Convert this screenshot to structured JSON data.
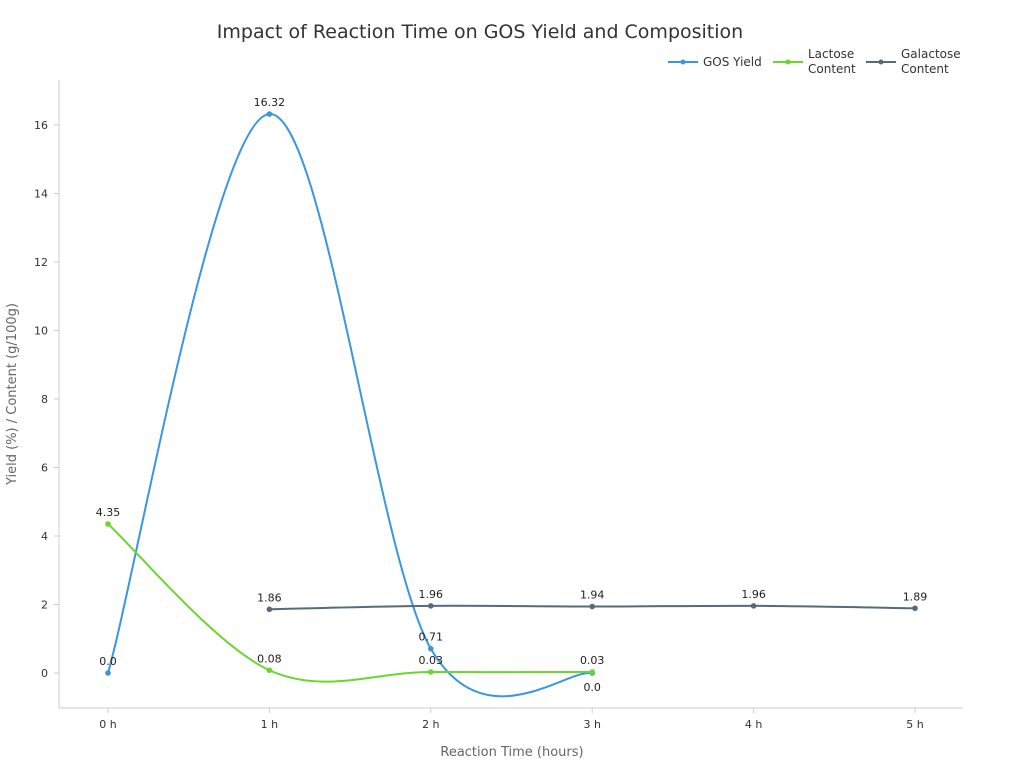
{
  "chart_data": {
    "type": "line",
    "title": "Impact of Reaction Time on GOS Yield and Composition",
    "xlabel": "Reaction Time (hours)",
    "ylabel": "Yield (%) / Content (g/100g)",
    "categories": [
      "0 h",
      "1 h",
      "2 h",
      "3 h",
      "4 h",
      "5 h"
    ],
    "ylim": [
      -1.0,
      17.3
    ],
    "yticks": [
      0,
      2,
      4,
      6,
      8,
      10,
      12,
      14,
      16
    ],
    "grid": false,
    "legend_position": "top-right",
    "series": [
      {
        "name": "GOS Yield",
        "color": "#3a96e0",
        "x": [
          0,
          1,
          2,
          3
        ],
        "values": [
          0.0,
          16.32,
          0.71,
          0.0
        ],
        "labels": [
          "0.0",
          "16.32",
          "0.71",
          "0.0"
        ]
      },
      {
        "name": "Lactose Content",
        "color": "#6bd62f",
        "x": [
          0,
          1,
          2,
          3
        ],
        "values": [
          4.35,
          0.08,
          0.03,
          0.03
        ],
        "labels": [
          "4.35",
          "0.08",
          "0.03",
          "0.03"
        ]
      },
      {
        "name": "Galactose Content",
        "color": "#566b7a",
        "x": [
          1,
          2,
          3,
          4,
          5
        ],
        "values": [
          1.86,
          1.96,
          1.94,
          1.96,
          1.89
        ],
        "labels": [
          "1.86",
          "1.96",
          "1.94",
          "1.96",
          "1.89"
        ]
      }
    ]
  }
}
